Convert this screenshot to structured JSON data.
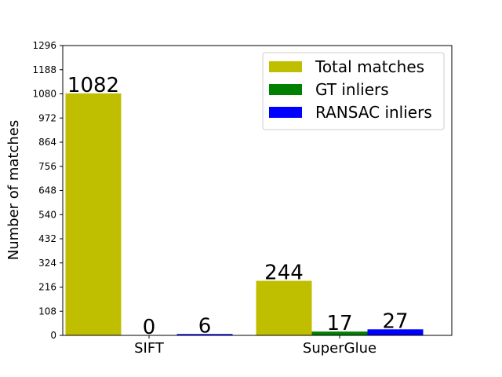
{
  "chart_data": {
    "type": "bar",
    "title": "",
    "xlabel": "",
    "ylabel": "Number of matches",
    "categories": [
      "SIFT",
      "SuperGlue"
    ],
    "series": [
      {
        "name": "Total matches",
        "color": "#bfbf00",
        "values": [
          1082,
          244
        ]
      },
      {
        "name": "GT inliers",
        "color": "#008000",
        "values": [
          0,
          17
        ]
      },
      {
        "name": "RANSAC inliers",
        "color": "#0000ff",
        "values": [
          6,
          27
        ]
      }
    ],
    "ylim": [
      0,
      1296
    ],
    "yticks": [
      "0",
      "108",
      "216",
      "324",
      "432",
      "540",
      "648",
      "756",
      "864",
      "972",
      "1080",
      "1188",
      "1296"
    ],
    "grid": false,
    "legend_position": "top-right"
  }
}
